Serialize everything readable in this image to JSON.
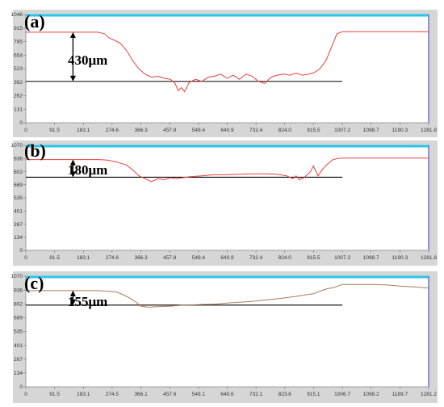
{
  "colors": {
    "profile_red": "#e8403c",
    "profile_brown": "#a87a5a",
    "frame": "#d6d6d6",
    "top_line": "#29c6e6",
    "right_line": "#6b6bd6"
  },
  "chart_data": [
    {
      "type": "line",
      "panel_label": "(a)",
      "annotation": "430μm",
      "x_ticks": [
        "0",
        "91.5",
        "183.1",
        "274.6",
        "366.3",
        "457.8",
        "549.4",
        "640.9",
        "732.4",
        "824.0",
        "915.5",
        "1007.2",
        "1098.7",
        "1190.3",
        "1281.8"
      ],
      "y_ticks": [
        "0",
        "131",
        "262",
        "392",
        "523",
        "654",
        "785",
        "915",
        "1046"
      ],
      "xlim": [
        0,
        1281.8
      ],
      "ylim": [
        0,
        1046
      ],
      "reference_level": 400,
      "arrow": {
        "x": 150,
        "from": 875,
        "to": 400
      },
      "reference_x": [
        0,
        1007.2
      ],
      "series": [
        {
          "x": [
            0,
            70,
            150,
            230,
            250,
            265,
            280,
            300,
            320,
            340,
            360,
            380,
            400,
            420,
            440,
            460,
            475,
            485,
            495,
            505,
            520,
            540,
            560,
            580,
            600,
            620,
            640,
            660,
            680,
            700,
            720,
            740,
            760,
            780,
            800,
            820,
            840,
            860,
            880,
            900,
            915,
            935,
            955,
            975,
            990,
            1007.2,
            1100,
            1200,
            1281.8
          ],
          "y": [
            875,
            875,
            875,
            875,
            860,
            820,
            800,
            770,
            700,
            600,
            520,
            470,
            440,
            450,
            430,
            420,
            380,
            310,
            340,
            300,
            390,
            420,
            400,
            440,
            450,
            470,
            430,
            460,
            420,
            470,
            450,
            400,
            380,
            440,
            460,
            470,
            460,
            480,
            460,
            470,
            480,
            520,
            600,
            750,
            860,
            880,
            880,
            880,
            880
          ]
        }
      ]
    },
    {
      "type": "line",
      "panel_label": "(b)",
      "annotation": "180μm",
      "x_ticks": [
        "0",
        "91.5",
        "183.1",
        "274.6",
        "366.3",
        "457.8",
        "549.4",
        "640.9",
        "732.4",
        "824.0",
        "915.5",
        "1007.2",
        "1098.7",
        "1190.3",
        "1281.8"
      ],
      "y_ticks": [
        "0",
        "134",
        "267",
        "401",
        "535",
        "669",
        "802",
        "936",
        "1070"
      ],
      "xlim": [
        0,
        1281.8
      ],
      "ylim": [
        0,
        1070
      ],
      "reference_level": 745,
      "arrow": {
        "x": 150,
        "from": 925,
        "to": 745
      },
      "reference_x": [
        0,
        1007.2
      ],
      "series": [
        {
          "x": [
            0,
            60,
            150,
            230,
            260,
            290,
            320,
            340,
            360,
            380,
            400,
            420,
            440,
            460,
            480,
            520,
            560,
            600,
            640,
            680,
            720,
            760,
            800,
            830,
            850,
            860,
            870,
            885,
            895,
            905,
            915,
            930,
            945,
            960,
            975,
            990,
            1007.2,
            1100,
            1200,
            1281.8
          ],
          "y": [
            925,
            925,
            925,
            925,
            920,
            900,
            870,
            820,
            760,
            730,
            700,
            730,
            720,
            740,
            730,
            750,
            760,
            770,
            770,
            775,
            780,
            780,
            775,
            760,
            730,
            760,
            720,
            740,
            770,
            800,
            860,
            760,
            830,
            880,
            920,
            935,
            940,
            940,
            940,
            940
          ]
        }
      ]
    },
    {
      "type": "line",
      "panel_label": "(c)",
      "annotation": "155μm",
      "x_ticks": [
        "0",
        "91.5",
        "183.1",
        "274.5",
        "366.1",
        "457.6",
        "549.1",
        "640.6",
        "732.1",
        "823.6",
        "915.1",
        "1006.7",
        "1098.2",
        "1189.7",
        "1281.2"
      ],
      "y_ticks": [
        "0",
        "134",
        "267",
        "401",
        "535",
        "669",
        "802",
        "936",
        "1070"
      ],
      "xlim": [
        0,
        1281.2
      ],
      "ylim": [
        0,
        1070
      ],
      "reference_level": 790,
      "arrow": {
        "x": 150,
        "from": 930,
        "to": 790
      },
      "reference_x": [
        0,
        1006.7
      ],
      "series": [
        {
          "x": [
            0,
            60,
            150,
            230,
            260,
            290,
            310,
            330,
            350,
            366.1,
            390,
            420,
            457.6,
            500,
            549.1,
            600,
            640.6,
            690,
            732.1,
            780,
            823.6,
            860,
            890,
            915.1,
            940,
            960,
            980,
            1006.7,
            1050,
            1098.2,
            1150,
            1189.7,
            1240,
            1281.2
          ],
          "y": [
            930,
            930,
            930,
            930,
            925,
            915,
            890,
            860,
            820,
            780,
            770,
            775,
            780,
            790,
            795,
            800,
            810,
            820,
            830,
            845,
            860,
            875,
            890,
            900,
            930,
            950,
            960,
            990,
            990,
            990,
            985,
            975,
            965,
            955
          ]
        }
      ]
    }
  ]
}
